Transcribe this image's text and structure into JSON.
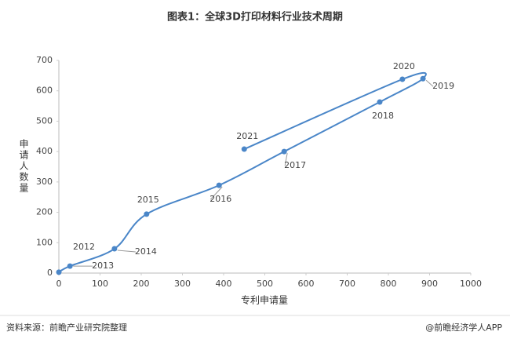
{
  "chart_data": {
    "type": "line",
    "title": "图表1：全球3D打印材料行业技术周期",
    "xlabel": "专利申请量",
    "ylabel": "申请人数量",
    "x": [
      0,
      27,
      135,
      213,
      389,
      547,
      779,
      884,
      834,
      450
    ],
    "values": [
      3,
      23,
      80,
      194,
      289,
      400,
      563,
      640,
      638,
      408
    ],
    "point_labels": [
      "2012",
      "2013",
      "2014",
      "2015",
      "2016",
      "2017",
      "2018",
      "2019",
      "2020",
      "2021"
    ],
    "color": "#4a86c8",
    "xlim": [
      0,
      1000
    ],
    "xticks": [
      0,
      100,
      200,
      300,
      400,
      500,
      600,
      700,
      800,
      900,
      1000
    ],
    "ylim": [
      0,
      700
    ],
    "yticks": [
      0,
      100,
      200,
      300,
      400,
      500,
      600,
      700
    ],
    "grid": false,
    "source": "资料来源：前瞻产业研究院整理",
    "credit": "@前瞻经济学人APP"
  }
}
